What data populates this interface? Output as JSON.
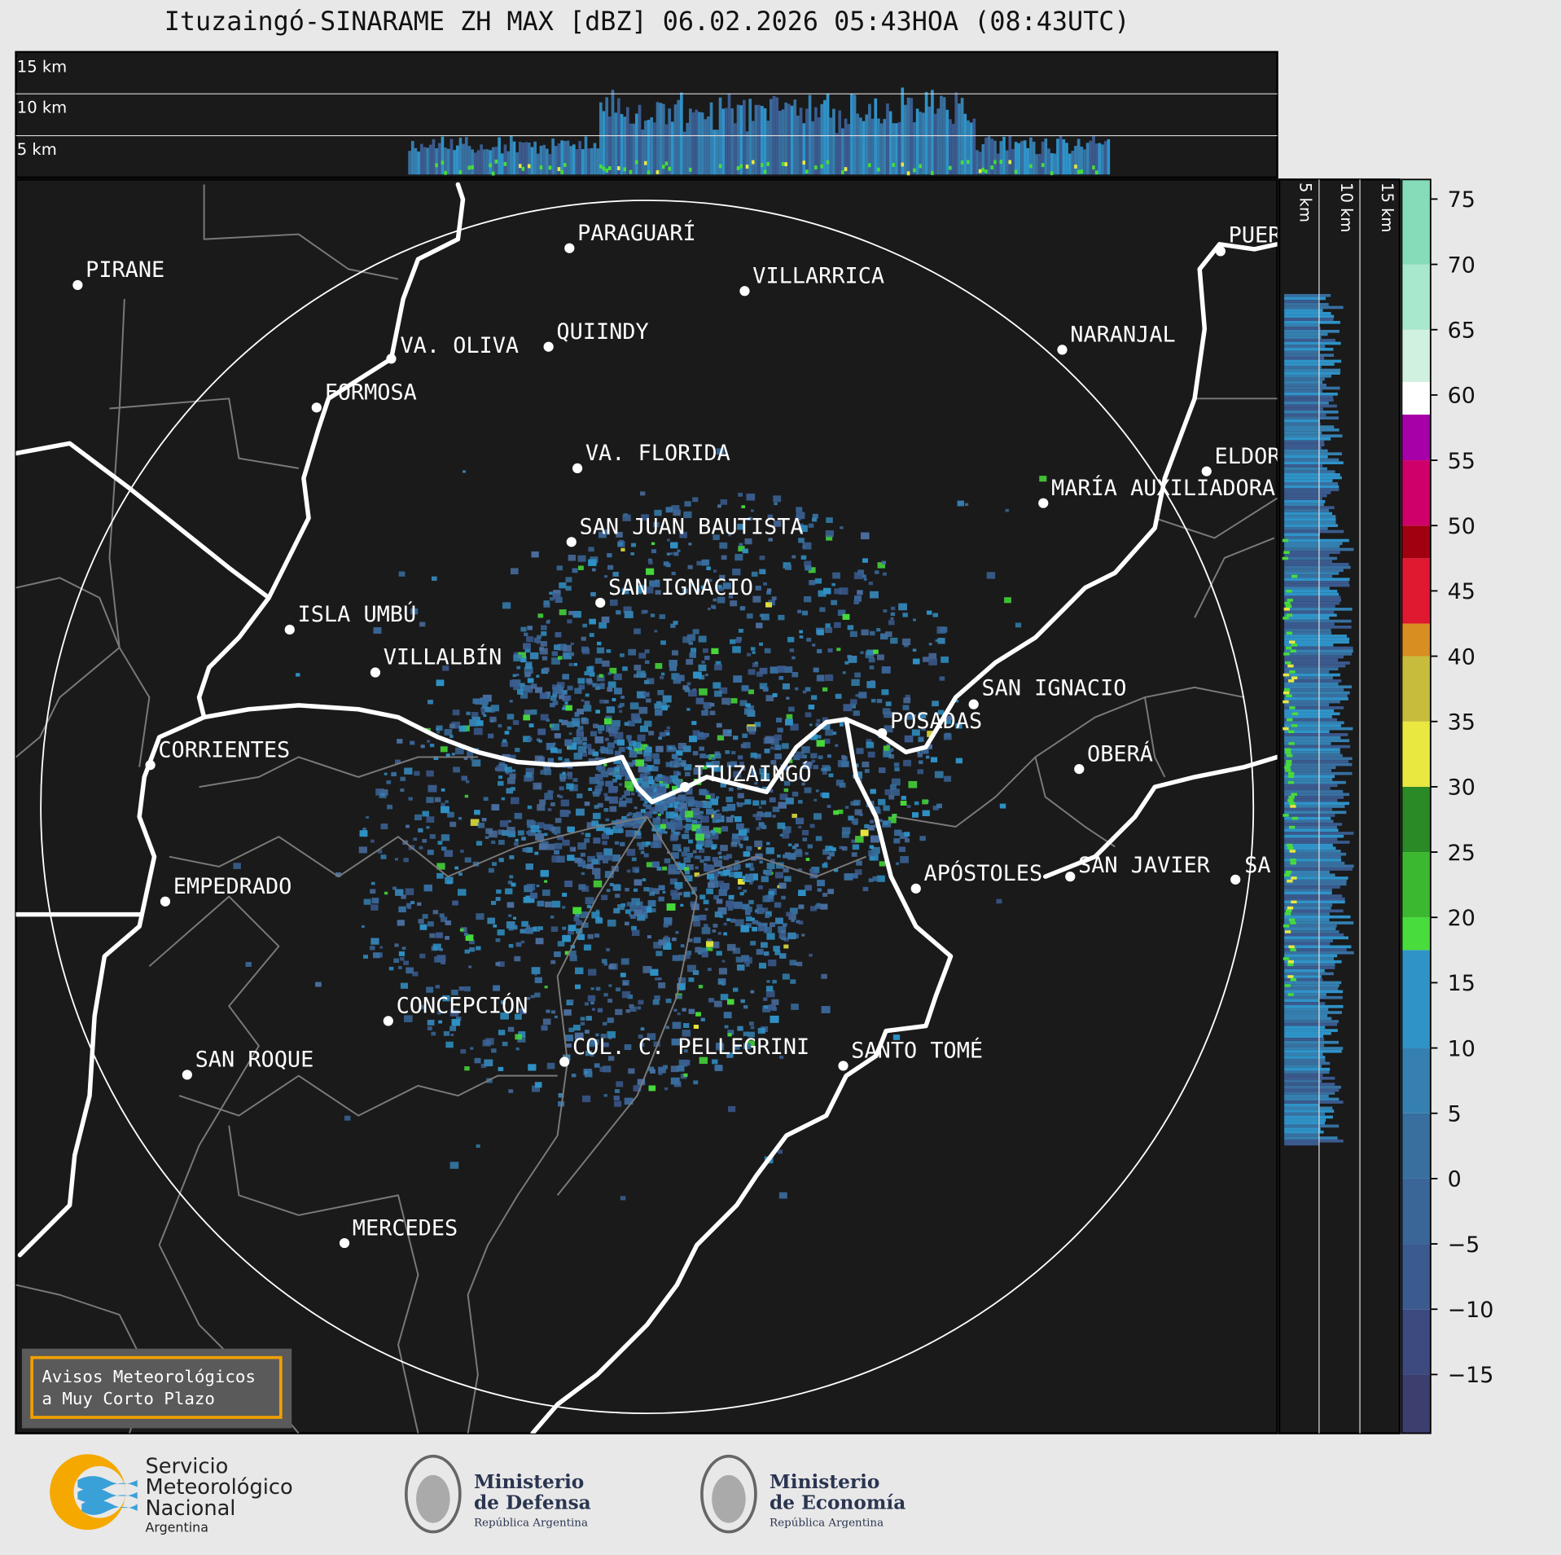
{
  "title": "Ituzaingó-SINARAME ZH MAX [dBZ] 06.02.2026 05:43HOA (08:43UTC)",
  "cross_section_top": {
    "labels": [
      "15 km",
      "10 km",
      "5 km"
    ]
  },
  "cross_section_right": {
    "labels": [
      "5 km",
      "10 km",
      "15 km"
    ]
  },
  "map": {
    "places": [
      "PIRANE",
      "PARAGUARÍ",
      "VILLARRICA",
      "QUIINDY",
      "VA. OLIVA",
      "NARANJAL",
      "FORMOSA",
      "VA. FLORIDA",
      "ELDORADO",
      "MARÍA AUXILIADORA",
      "SAN JUAN BAUTISTA",
      "SAN IGNACIO",
      "ISLA UMBÚ",
      "VILLALBÍN",
      "SAN IGNACIO",
      "POSADAS",
      "CORRIENTES",
      "OBERÁ",
      "ITUZAINGÓ",
      "APÓSTOLES",
      "SAN JAVIER",
      "SA",
      "EMPEDRADO",
      "CONCEPCIÓN",
      "COL. C. PELLEGRINI",
      "SAN ROQUE",
      "SANTO TOMÉ",
      "MERCEDES",
      "PUERTO IGUAZÚ"
    ]
  },
  "colorbar": {
    "range": [
      -19.5,
      76.5
    ],
    "ticks": [
      75,
      70,
      65,
      60,
      55,
      50,
      45,
      40,
      35,
      30,
      25,
      20,
      15,
      10,
      5,
      0,
      {
        "value": -5,
        "label": "−5"
      },
      {
        "value": -10,
        "label": "−10"
      },
      {
        "value": -15,
        "label": "−15"
      }
    ],
    "bounds": [
      -19.5,
      -15,
      -10,
      -5,
      0,
      5,
      10,
      17.5,
      20,
      25,
      30,
      35,
      40,
      42.5,
      47.5,
      50,
      55,
      58.5,
      61,
      65,
      70,
      76.5
    ],
    "colors": [
      "#3c3f6e",
      "#3d4a80",
      "#3b5a8e",
      "#3a6597",
      "#386f9f",
      "#3580b0",
      "#2f93c8",
      "#48dc3c",
      "#3cb830",
      "#2a8a25",
      "#e8e840",
      "#c8bc3c",
      "#d88e20",
      "#e01830",
      "#a00010",
      "#d0006a",
      "#a800a8",
      "#ffffff",
      "#d0f0e0",
      "#a8e8cc",
      "#84dcb8"
    ]
  },
  "notice": {
    "lines": [
      "Avisos Meteorológicos",
      "a Muy Corto Plazo"
    ]
  },
  "logos": {
    "smn": [
      "Servicio",
      "Meteorológico",
      "Nacional",
      "Argentina"
    ],
    "defensa": [
      "Ministerio",
      "de Defensa",
      "República Argentina"
    ],
    "economia": [
      "Ministerio",
      "de Economía",
      "República Argentina"
    ]
  }
}
